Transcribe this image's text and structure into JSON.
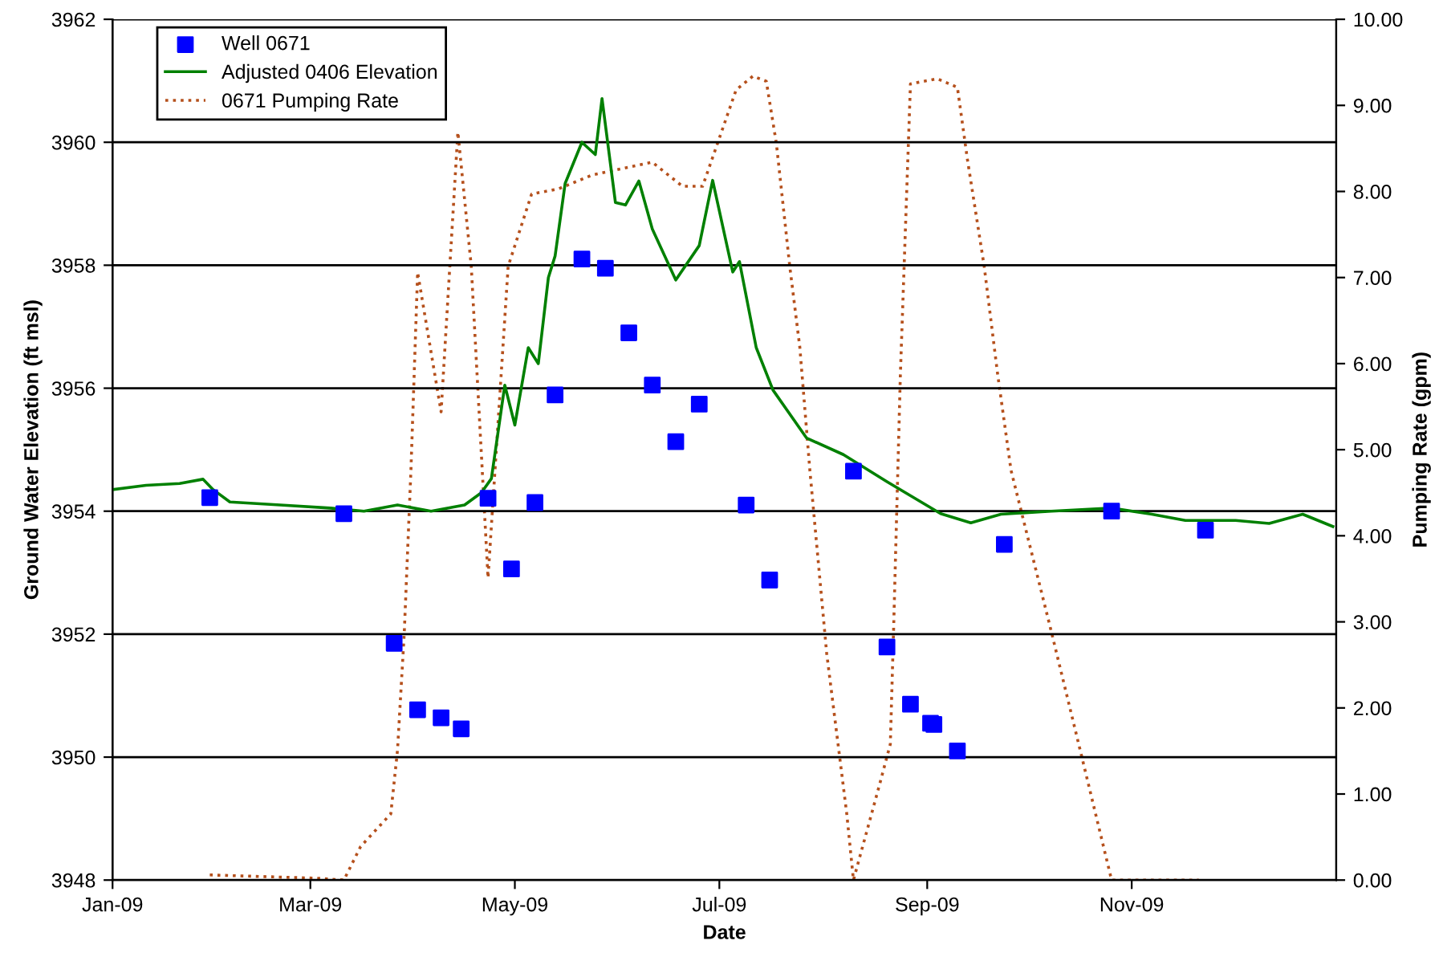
{
  "chart_data": {
    "type": "scatter",
    "xlabel": "Date",
    "ylabel": "Ground Water Elevation (ft msl)",
    "y2label": "Pumping Rate (gpm)",
    "xlim": [
      "2009-01-01",
      "2010-01-01"
    ],
    "xticks": [
      {
        "value": "2009-01-01",
        "label": "Jan-09"
      },
      {
        "value": "2009-03-01",
        "label": "Mar-09"
      },
      {
        "value": "2009-05-01",
        "label": "May-09"
      },
      {
        "value": "2009-07-01",
        "label": "Jul-09"
      },
      {
        "value": "2009-09-01",
        "label": "Sep-09"
      },
      {
        "value": "2009-11-01",
        "label": "Nov-09"
      }
    ],
    "ylim": [
      3948,
      3962
    ],
    "yticks": [
      3948,
      3950,
      3952,
      3954,
      3956,
      3958,
      3960,
      3962
    ],
    "y2lim": [
      0,
      10
    ],
    "y2ticks": [
      {
        "value": 0,
        "label": "0.00"
      },
      {
        "value": 1,
        "label": "1.00"
      },
      {
        "value": 2,
        "label": "2.00"
      },
      {
        "value": 3,
        "label": "3.00"
      },
      {
        "value": 4,
        "label": "4.00"
      },
      {
        "value": 5,
        "label": "5.00"
      },
      {
        "value": 6,
        "label": "6.00"
      },
      {
        "value": 7,
        "label": "7.00"
      },
      {
        "value": 8,
        "label": "8.00"
      },
      {
        "value": 9,
        "label": "9.00"
      },
      {
        "value": 10,
        "label": "10.00"
      }
    ],
    "grid": "y",
    "legend": "top left",
    "series": [
      {
        "name": "Well 0671",
        "marker": "square",
        "color": "#0000ff",
        "x": [
          "2009-01-30",
          "2009-03-11",
          "2009-03-26",
          "2009-04-02",
          "2009-04-09",
          "2009-04-15",
          "2009-04-23",
          "2009-04-30",
          "2009-05-07",
          "2009-05-13",
          "2009-05-21",
          "2009-05-28",
          "2009-06-04",
          "2009-06-11",
          "2009-06-18",
          "2009-06-25",
          "2009-07-09",
          "2009-07-16",
          "2009-08-10",
          "2009-08-20",
          "2009-08-27",
          "2009-09-02",
          "2009-09-03",
          "2009-09-10",
          "2009-09-24",
          "2009-10-26",
          "2009-11-23"
        ],
        "values": [
          3954.22,
          3953.96,
          3951.85,
          3950.77,
          3950.64,
          3950.46,
          3954.21,
          3953.06,
          3954.14,
          3955.89,
          3958.1,
          3957.95,
          3956.9,
          3956.05,
          3955.13,
          3955.74,
          3954.1,
          3952.88,
          3954.65,
          3951.79,
          3950.86,
          3950.55,
          3950.53,
          3950.1,
          3953.46,
          3954.0,
          3953.69
        ]
      },
      {
        "name": "Adjusted 0406 Elevation",
        "type": "line",
        "marker": "none",
        "line_style": "solid",
        "color": "#008000",
        "x": [
          "2009-01-01",
          "2009-01-11",
          "2009-01-21",
          "2009-01-28",
          "2009-01-31",
          "2009-02-05",
          "2009-02-20",
          "2009-03-07",
          "2009-03-17",
          "2009-03-27",
          "2009-04-06",
          "2009-04-16",
          "2009-04-21",
          "2009-04-24",
          "2009-04-28",
          "2009-05-01",
          "2009-05-05",
          "2009-05-08",
          "2009-05-11",
          "2009-05-13",
          "2009-05-16",
          "2009-05-21",
          "2009-05-25",
          "2009-05-27",
          "2009-05-31",
          "2009-06-03",
          "2009-06-07",
          "2009-06-11",
          "2009-06-18",
          "2009-06-25",
          "2009-06-29",
          "2009-07-05",
          "2009-07-07",
          "2009-07-12",
          "2009-07-17",
          "2009-07-27",
          "2009-08-07",
          "2009-08-20",
          "2009-09-05",
          "2009-09-14",
          "2009-09-23",
          "2009-10-08",
          "2009-10-26",
          "2009-11-07",
          "2009-11-17",
          "2009-12-02",
          "2009-12-12",
          "2009-12-22",
          "2009-12-31"
        ],
        "values": [
          3954.35,
          3954.42,
          3954.45,
          3954.52,
          3954.35,
          3954.15,
          3954.1,
          3954.05,
          3954.0,
          3954.1,
          3954.0,
          3954.1,
          3954.3,
          3954.53,
          3956.05,
          3955.4,
          3956.66,
          3956.4,
          3957.8,
          3958.15,
          3959.33,
          3960.0,
          3959.8,
          3960.71,
          3959.02,
          3958.98,
          3959.37,
          3958.59,
          3957.76,
          3958.32,
          3959.38,
          3957.89,
          3958.06,
          3956.66,
          3955.97,
          3955.19,
          3954.92,
          3954.48,
          3953.96,
          3953.81,
          3953.95,
          3954.0,
          3954.05,
          3953.95,
          3953.85,
          3953.85,
          3953.8,
          3953.95,
          3953.75
        ]
      },
      {
        "name": "0671 Pumping Rate",
        "type": "line",
        "axis": "y2",
        "marker": "none",
        "line_style": "dotted",
        "color": "#b5501c",
        "x": [
          "2009-01-30",
          "2009-03-04",
          "2009-03-11",
          "2009-03-16",
          "2009-03-25",
          "2009-03-27",
          "2009-03-29",
          "2009-03-31",
          "2009-04-02",
          "2009-04-09",
          "2009-04-14",
          "2009-04-18",
          "2009-04-23",
          "2009-04-29",
          "2009-05-06",
          "2009-05-14",
          "2009-05-24",
          "2009-06-11",
          "2009-06-20",
          "2009-06-26",
          "2009-07-06",
          "2009-07-11",
          "2009-07-15",
          "2009-07-18",
          "2009-07-22",
          "2009-07-25",
          "2009-07-28",
          "2009-08-02",
          "2009-08-08",
          "2009-08-10",
          "2009-08-18",
          "2009-08-21",
          "2009-08-22",
          "2009-08-24",
          "2009-08-27",
          "2009-09-04",
          "2009-09-10",
          "2009-09-13",
          "2009-09-18",
          "2009-09-22",
          "2009-09-26",
          "2009-10-08",
          "2009-10-17",
          "2009-10-26",
          "2009-11-21"
        ],
        "values": [
          0.06,
          0.02,
          0.0,
          0.39,
          0.77,
          1.51,
          2.86,
          4.76,
          7.06,
          5.44,
          8.69,
          7.13,
          3.51,
          7.13,
          7.97,
          8.03,
          8.19,
          8.34,
          8.06,
          8.06,
          9.18,
          9.34,
          9.28,
          8.56,
          7.13,
          6.19,
          4.76,
          2.64,
          0.77,
          0.0,
          1.14,
          1.58,
          2.95,
          5.88,
          9.25,
          9.31,
          9.21,
          8.37,
          7.13,
          5.88,
          4.76,
          2.89,
          1.45,
          0.0,
          0.0
        ]
      }
    ]
  }
}
